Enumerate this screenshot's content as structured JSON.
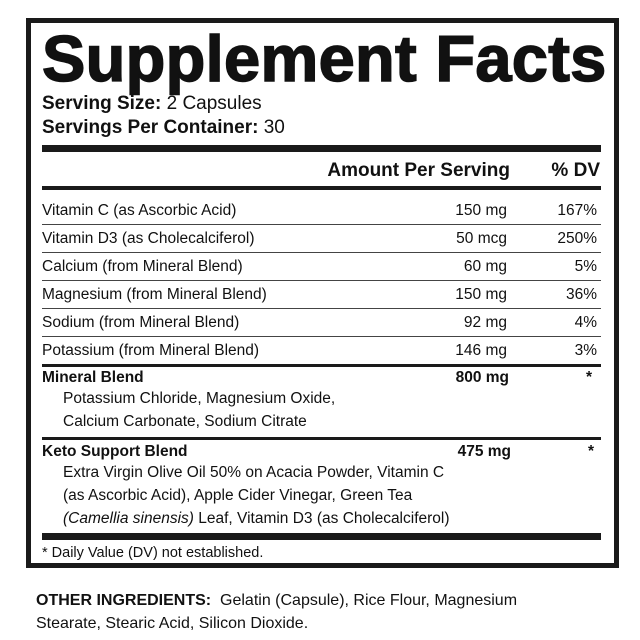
{
  "title": "Supplement Facts",
  "serving_size_label": "Serving Size:",
  "serving_size_value": "2 Capsules",
  "servings_per_container_label": "Servings Per Container:",
  "servings_per_container_value": "30",
  "header": {
    "amount": "Amount Per Serving",
    "dv": "% DV"
  },
  "nutrients": [
    {
      "name": "Vitamin C (as Ascorbic Acid)",
      "amount": "150 mg",
      "dv": "167%"
    },
    {
      "name": "Vitamin D3 (as Cholecalciferol)",
      "amount": "50 mcg",
      "dv": "250%"
    },
    {
      "name": "Calcium (from Mineral Blend)",
      "amount": "60 mg",
      "dv": "5%"
    },
    {
      "name": "Magnesium (from Mineral Blend)",
      "amount": "150 mg",
      "dv": "36%"
    },
    {
      "name": "Sodium (from Mineral Blend)",
      "amount": "92 mg",
      "dv": "4%"
    },
    {
      "name": "Potassium (from Mineral Blend)",
      "amount": "146 mg",
      "dv": "3%"
    }
  ],
  "blends": [
    {
      "name": "Mineral Blend",
      "amount": "800 mg",
      "dv": "*",
      "lines": [
        "Potassium Chloride, Magnesium Oxide,",
        "Calcium Carbonate, Sodium Citrate"
      ]
    },
    {
      "name": "Keto Support Blend",
      "amount": "475 mg",
      "dv": "*",
      "lines": [
        "Extra Virgin Olive Oil 50% on Acacia Powder, Vitamin C",
        "(as Ascorbic Acid), Apple Cider Vinegar, Green Tea"
      ],
      "last_line_italic": "(Camellia sinensis)",
      "last_line_rest": " Leaf, Vitamin D3 (as Cholecalciferol)"
    }
  ],
  "footnote": "* Daily Value (DV) not established.",
  "other_ingredients_label": "OTHER INGREDIENTS:",
  "other_ingredients_line1": "Gelatin (Capsule), Rice Flour, Magnesium",
  "other_ingredients_line2": "Stearate, Stearic Acid, Silicon Dioxide."
}
